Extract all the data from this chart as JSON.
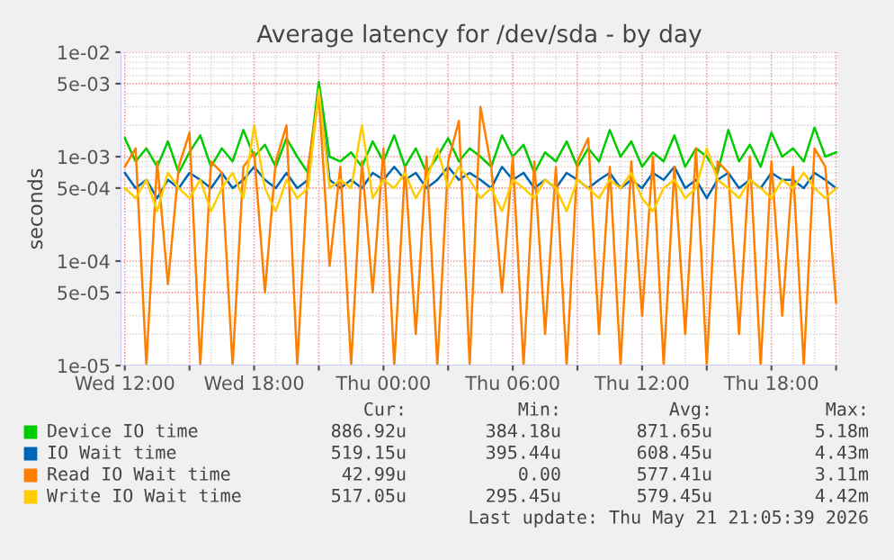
{
  "chart_data": {
    "type": "line",
    "title": "Average latency for /dev/sda - by day",
    "ylabel": "seconds",
    "log": "y",
    "grid": true,
    "legend": "bottom",
    "marker": "none",
    "line_style": "solid",
    "xlim": [
      "2026-05-20T11:48",
      "2026-05-21T21:06"
    ],
    "xticks": [
      {
        "value": "2026-05-20T12:00",
        "label": "Wed 12:00"
      },
      {
        "value": "2026-05-20T15:00",
        "label": null
      },
      {
        "value": "2026-05-20T18:00",
        "label": "Wed 18:00"
      },
      {
        "value": "2026-05-20T21:00",
        "label": null
      },
      {
        "value": "2026-05-21T00:00",
        "label": "Thu 00:00"
      },
      {
        "value": "2026-05-21T03:00",
        "label": null
      },
      {
        "value": "2026-05-21T06:00",
        "label": "Thu 06:00"
      },
      {
        "value": "2026-05-21T09:00",
        "label": null
      },
      {
        "value": "2026-05-21T12:00",
        "label": "Thu 12:00"
      },
      {
        "value": "2026-05-21T15:00",
        "label": null
      },
      {
        "value": "2026-05-21T18:00",
        "label": "Thu 18:00"
      },
      {
        "value": "2026-05-21T21:00",
        "label": null
      }
    ],
    "ylim": [
      1e-05,
      0.01
    ],
    "yticks": [
      {
        "value": 1e-05,
        "label": "1e-05"
      },
      {
        "value": 5e-05,
        "label": "5e-05"
      },
      {
        "value": 0.0001,
        "label": "1e-04"
      },
      {
        "value": 0.0005,
        "label": "5e-04"
      },
      {
        "value": 0.001,
        "label": "1e-03"
      },
      {
        "value": 0.005,
        "label": "5e-03"
      },
      {
        "value": 0.01,
        "label": "1e-02"
      }
    ],
    "x": [
      "2026-05-20T12:00",
      "2026-05-20T12:30",
      "2026-05-20T13:00",
      "2026-05-20T13:30",
      "2026-05-20T14:00",
      "2026-05-20T14:30",
      "2026-05-20T15:00",
      "2026-05-20T15:30",
      "2026-05-20T16:00",
      "2026-05-20T16:30",
      "2026-05-20T17:00",
      "2026-05-20T17:30",
      "2026-05-20T18:00",
      "2026-05-20T18:30",
      "2026-05-20T19:00",
      "2026-05-20T19:30",
      "2026-05-20T20:00",
      "2026-05-20T20:30",
      "2026-05-20T21:00",
      "2026-05-20T21:30",
      "2026-05-20T22:00",
      "2026-05-20T22:30",
      "2026-05-20T23:00",
      "2026-05-20T23:30",
      "2026-05-21T00:00",
      "2026-05-21T00:30",
      "2026-05-21T01:00",
      "2026-05-21T01:30",
      "2026-05-21T02:00",
      "2026-05-21T02:30",
      "2026-05-21T03:00",
      "2026-05-21T03:30",
      "2026-05-21T04:00",
      "2026-05-21T04:30",
      "2026-05-21T05:00",
      "2026-05-21T05:30",
      "2026-05-21T06:00",
      "2026-05-21T06:30",
      "2026-05-21T07:00",
      "2026-05-21T07:30",
      "2026-05-21T08:00",
      "2026-05-21T08:30",
      "2026-05-21T09:00",
      "2026-05-21T09:30",
      "2026-05-21T10:00",
      "2026-05-21T10:30",
      "2026-05-21T11:00",
      "2026-05-21T11:30",
      "2026-05-21T12:00",
      "2026-05-21T12:30",
      "2026-05-21T13:00",
      "2026-05-21T13:30",
      "2026-05-21T14:00",
      "2026-05-21T14:30",
      "2026-05-21T15:00",
      "2026-05-21T15:30",
      "2026-05-21T16:00",
      "2026-05-21T16:30",
      "2026-05-21T17:00",
      "2026-05-21T17:30",
      "2026-05-21T18:00",
      "2026-05-21T18:30",
      "2026-05-21T19:00",
      "2026-05-21T19:30",
      "2026-05-21T20:00",
      "2026-05-21T20:30",
      "2026-05-21T21:00"
    ],
    "series": [
      {
        "name": "Device IO time",
        "color": "#00cc00",
        "values": [
          0.0015,
          0.0009,
          0.0012,
          0.0008,
          0.0014,
          0.0007,
          0.0011,
          0.0016,
          0.0008,
          0.0012,
          0.0009,
          0.0018,
          0.001,
          0.0013,
          0.0008,
          0.0015,
          0.001,
          0.0007,
          0.0052,
          0.001,
          0.0009,
          0.0011,
          0.0008,
          0.0014,
          0.0009,
          0.0016,
          0.0008,
          0.0012,
          0.0007,
          0.001,
          0.0015,
          0.0009,
          0.0012,
          0.001,
          0.0008,
          0.0016,
          0.001,
          0.0013,
          0.0007,
          0.0011,
          0.0009,
          0.0014,
          0.0008,
          0.0012,
          0.0009,
          0.0018,
          0.001,
          0.0014,
          0.0008,
          0.0011,
          0.0009,
          0.0016,
          0.0008,
          0.0012,
          0.001,
          0.0007,
          0.0018,
          0.0009,
          0.0013,
          0.0008,
          0.0017,
          0.001,
          0.0012,
          0.0009,
          0.0019,
          0.001,
          0.0011
        ]
      },
      {
        "name": "IO Wait time",
        "color": "#0066b3",
        "values": [
          0.0007,
          0.0005,
          0.0006,
          0.0004,
          0.0006,
          0.0005,
          0.0007,
          0.0006,
          0.0005,
          0.0007,
          0.0005,
          0.0006,
          0.0008,
          0.0006,
          0.0005,
          0.0007,
          0.0005,
          0.0006,
          0.0044,
          0.0006,
          0.0005,
          0.0006,
          0.0005,
          0.0007,
          0.0006,
          0.0008,
          0.0006,
          0.0007,
          0.0005,
          0.0006,
          0.0008,
          0.0006,
          0.0007,
          0.0006,
          0.0005,
          0.0008,
          0.0006,
          0.0007,
          0.0005,
          0.0006,
          0.0005,
          0.0007,
          0.0006,
          0.0005,
          0.0006,
          0.0007,
          0.0005,
          0.0006,
          0.0005,
          0.0007,
          0.0006,
          0.0008,
          0.0005,
          0.0006,
          0.0004,
          0.0006,
          0.0007,
          0.0005,
          0.0006,
          0.0005,
          0.0007,
          0.0006,
          0.0006,
          0.0005,
          0.0007,
          0.0006,
          0.0005
        ]
      },
      {
        "name": "Read IO Wait time",
        "color": "#ff8000",
        "values": [
          0.0008,
          0.0012,
          1e-05,
          0.0009,
          6e-05,
          0.0008,
          0.0017,
          1e-05,
          0.0009,
          0.0007,
          1e-05,
          0.0008,
          0.0011,
          5e-05,
          0.0009,
          0.002,
          1e-05,
          0.0008,
          0.004,
          9e-05,
          0.0008,
          1e-05,
          0.0009,
          5e-05,
          0.0012,
          1e-05,
          0.0008,
          2e-05,
          0.001,
          1e-05,
          0.0009,
          0.0022,
          1e-05,
          0.003,
          0.0008,
          5e-05,
          0.001,
          1e-05,
          0.0009,
          2e-05,
          0.0008,
          1e-05,
          0.0009,
          0.0015,
          2e-05,
          0.0008,
          1e-05,
          0.0009,
          3e-05,
          0.001,
          1e-05,
          0.0008,
          2e-05,
          0.0012,
          1e-05,
          0.0009,
          0.0007,
          2e-05,
          0.001,
          1e-05,
          0.0009,
          3e-05,
          0.0008,
          1e-05,
          0.0012,
          0.0008,
          4e-05
        ]
      },
      {
        "name": "Write IO Wait time",
        "color": "#ffcc00",
        "values": [
          0.0005,
          0.0004,
          0.0006,
          0.0003,
          0.0007,
          0.0005,
          0.0004,
          0.0006,
          0.0003,
          0.0005,
          0.0007,
          0.0004,
          0.002,
          0.0005,
          0.0003,
          0.0006,
          0.0004,
          0.0005,
          0.0044,
          0.0005,
          0.0006,
          0.0005,
          0.002,
          0.0004,
          0.0006,
          0.0005,
          0.0007,
          0.0004,
          0.0006,
          0.0012,
          0.0005,
          0.0008,
          0.0006,
          0.0004,
          0.0005,
          0.0003,
          0.0006,
          0.0005,
          0.0004,
          0.0006,
          0.0005,
          0.0003,
          0.0006,
          0.0005,
          0.0004,
          0.0006,
          0.0005,
          0.0007,
          0.0004,
          0.0003,
          0.0005,
          0.0006,
          0.0004,
          0.0005,
          0.0012,
          0.0006,
          0.0005,
          0.0004,
          0.0006,
          0.0005,
          0.0004,
          0.0006,
          0.0005,
          0.0007,
          0.0005,
          0.0004,
          0.0005
        ]
      }
    ],
    "annotations": [
      "Cur:",
      "Min:",
      "Avg:",
      "Max:",
      "886.92u",
      "384.18u",
      "871.65u",
      "5.18m",
      "519.15u",
      "395.44u",
      "608.45u",
      "4.43m",
      "42.99u",
      "0.00",
      "577.41u",
      "3.11m",
      "517.05u",
      "295.45u",
      "579.45u",
      "4.42m",
      "Last update: Thu May 21 21:05:39 2026"
    ]
  }
}
